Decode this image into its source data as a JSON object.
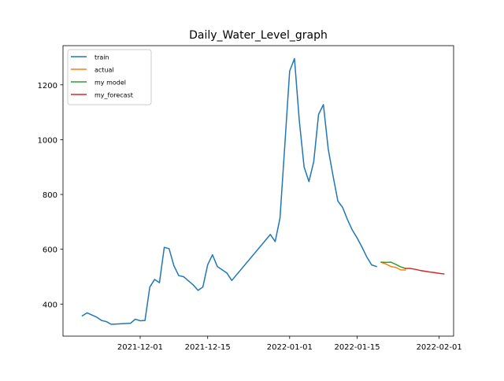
{
  "chart_data": {
    "type": "line",
    "title": "Daily_Water_Level_graph",
    "xlabel": "",
    "ylabel": "",
    "x_type": "date",
    "xlim": [
      "2021-11-15",
      "2022-02-04"
    ],
    "ylim": [
      283,
      1343
    ],
    "x_ticks": [
      "2021-12-01",
      "2021-12-15",
      "2022-01-01",
      "2022-01-15",
      "2022-02-01"
    ],
    "y_ticks": [
      400,
      600,
      800,
      1000,
      1200
    ],
    "legend_position": "top-left",
    "series": [
      {
        "name": "train",
        "color": "#1f77b4",
        "points": [
          [
            "2021-11-19",
            357
          ],
          [
            "2021-11-20",
            368
          ],
          [
            "2021-11-22",
            352
          ],
          [
            "2021-11-23",
            340
          ],
          [
            "2021-11-24",
            336
          ],
          [
            "2021-11-25",
            326
          ],
          [
            "2021-11-29",
            330
          ],
          [
            "2021-11-30",
            345
          ],
          [
            "2021-12-01",
            339
          ],
          [
            "2021-12-02",
            340
          ],
          [
            "2021-12-03",
            462
          ],
          [
            "2021-12-04",
            490
          ],
          [
            "2021-12-05",
            478
          ],
          [
            "2021-12-06",
            607
          ],
          [
            "2021-12-07",
            602
          ],
          [
            "2021-12-08",
            540
          ],
          [
            "2021-12-09",
            504
          ],
          [
            "2021-12-10",
            500
          ],
          [
            "2021-12-11",
            485
          ],
          [
            "2021-12-12",
            470
          ],
          [
            "2021-12-13",
            450
          ],
          [
            "2021-12-14",
            462
          ],
          [
            "2021-12-15",
            543
          ],
          [
            "2021-12-16",
            580
          ],
          [
            "2021-12-17",
            537
          ],
          [
            "2021-12-19",
            513
          ],
          [
            "2021-12-20",
            486
          ],
          [
            "2021-12-28",
            654
          ],
          [
            "2021-12-29",
            628
          ],
          [
            "2021-12-30",
            714
          ],
          [
            "2021-12-31",
            980
          ],
          [
            "2022-01-01",
            1250
          ],
          [
            "2022-01-02",
            1296
          ],
          [
            "2022-01-03",
            1070
          ],
          [
            "2022-01-04",
            900
          ],
          [
            "2022-01-05",
            847
          ],
          [
            "2022-01-06",
            920
          ],
          [
            "2022-01-07",
            1092
          ],
          [
            "2022-01-08",
            1128
          ],
          [
            "2022-01-09",
            966
          ],
          [
            "2022-01-10",
            868
          ],
          [
            "2022-01-11",
            776
          ],
          [
            "2022-01-12",
            752
          ],
          [
            "2022-01-13",
            708
          ],
          [
            "2022-01-14",
            670
          ],
          [
            "2022-01-15",
            641
          ],
          [
            "2022-01-16",
            608
          ],
          [
            "2022-01-17",
            572
          ],
          [
            "2022-01-18",
            543
          ],
          [
            "2022-01-19",
            537
          ]
        ]
      },
      {
        "name": "actual",
        "color": "#ff7f0e",
        "points": [
          [
            "2022-01-20",
            552
          ],
          [
            "2022-01-21",
            546
          ],
          [
            "2022-01-22",
            537
          ],
          [
            "2022-01-23",
            534
          ],
          [
            "2022-01-24",
            525
          ],
          [
            "2022-01-25",
            524
          ]
        ]
      },
      {
        "name": "my model",
        "color": "#2ca02c",
        "points": [
          [
            "2022-01-20",
            553
          ],
          [
            "2022-01-21",
            552
          ],
          [
            "2022-01-22",
            553
          ],
          [
            "2022-01-23",
            545
          ],
          [
            "2022-01-24",
            536
          ],
          [
            "2022-01-25",
            530
          ]
        ]
      },
      {
        "name": "my_forecast",
        "color": "#d62728",
        "points": [
          [
            "2022-01-25",
            530
          ],
          [
            "2022-01-26",
            530
          ],
          [
            "2022-01-27",
            527
          ],
          [
            "2022-01-28",
            523
          ],
          [
            "2022-01-29",
            520
          ],
          [
            "2022-01-30",
            517
          ],
          [
            "2022-01-31",
            515
          ],
          [
            "2022-02-01",
            512
          ],
          [
            "2022-02-02",
            510
          ]
        ]
      }
    ]
  }
}
